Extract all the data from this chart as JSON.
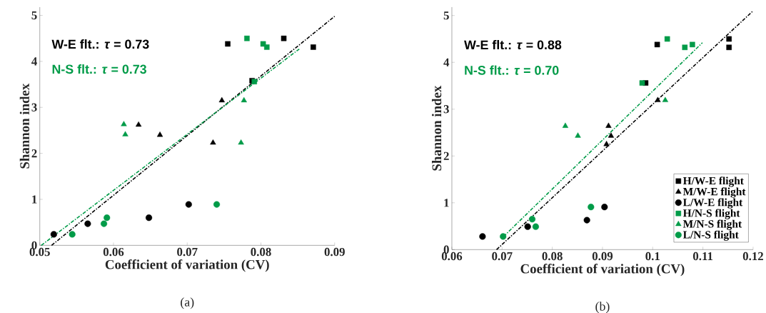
{
  "chart_data": [
    {
      "type": "scatter",
      "title": "(a)",
      "xlabel": "Coefficient of variation (CV)",
      "ylabel": "Shannon index",
      "xlim": [
        0.05,
        0.09
      ],
      "xticks": [
        0.05,
        0.06,
        0.07,
        0.08,
        0.09
      ],
      "ylim": [
        0,
        5.18
      ],
      "yticks": [
        0,
        1,
        2,
        3,
        4,
        5
      ],
      "annotations": [
        "W-E flt.: *τ* = 0.73",
        "N-S flt.: *τ* = 0.73"
      ],
      "series": [
        {
          "marker": "square",
          "color": "#000000",
          "x": [
            0.0755,
            0.0831,
            0.0871,
            0.0788
          ],
          "values": [
            4.38,
            4.5,
            4.31,
            3.58
          ]
        },
        {
          "marker": "triangle",
          "color": "#000000",
          "x": [
            0.0747,
            0.0634,
            0.0663,
            0.0735
          ],
          "values": [
            3.15,
            2.62,
            2.4,
            2.23
          ]
        },
        {
          "marker": "circle",
          "color": "#000000",
          "x": [
            0.0519,
            0.0565,
            0.0648,
            0.0702
          ],
          "values": [
            0.24,
            0.47,
            0.6,
            0.89
          ]
        },
        {
          "marker": "square",
          "color": "#009b48",
          "x": [
            0.0781,
            0.0803,
            0.0808,
            0.0791
          ],
          "values": [
            4.5,
            4.38,
            4.31,
            3.56
          ]
        },
        {
          "marker": "triangle",
          "color": "#009b48",
          "x": [
            0.0614,
            0.0616,
            0.0777,
            0.0773
          ],
          "values": [
            2.63,
            2.41,
            3.15,
            2.23
          ]
        },
        {
          "marker": "circle",
          "color": "#009b48",
          "x": [
            0.0544,
            0.0587,
            0.0591,
            0.074
          ],
          "values": [
            0.24,
            0.47,
            0.6,
            0.89
          ]
        },
        {
          "type": "line",
          "line_style": "dashdot",
          "color": "#000000",
          "x": [
            0.0516,
            0.09
          ],
          "values": [
            0,
            4.98
          ]
        },
        {
          "type": "line",
          "line_style": "dashdot",
          "color": "#009b48",
          "x": [
            0.0502,
            0.0852
          ],
          "values": [
            0,
            4.27
          ]
        }
      ]
    },
    {
      "type": "scatter",
      "title": "(b)",
      "xlabel": "Coefficient of variation (CV)",
      "ylabel": "Shannon index",
      "legend": "bottom right",
      "xlim": [
        0.06,
        0.12
      ],
      "xticks": [
        0.06,
        0.07,
        0.08,
        0.09,
        0.1,
        0.11,
        0.12
      ],
      "ylim": [
        0,
        5.18
      ],
      "yticks": [
        0,
        1,
        2,
        3,
        4,
        5
      ],
      "annotations": [
        "W-E flt.: *τ* = 0.88",
        "N-S flt.: *τ* = 0.70"
      ],
      "series": [
        {
          "name": "H/W-E flight",
          "marker": "square",
          "color": "#000000",
          "x": [
            0.1009,
            0.1152,
            0.1152,
            0.0986
          ],
          "values": [
            4.38,
            4.5,
            4.32,
            3.56
          ]
        },
        {
          "name": "M/W-E flight",
          "marker": "triangle",
          "color": "#000000",
          "x": [
            0.0912,
            0.0917,
            0.0908,
            0.101
          ],
          "values": [
            2.64,
            2.43,
            2.25,
            3.19
          ]
        },
        {
          "name": "L/W-E flight",
          "marker": "circle",
          "color": "#000000",
          "x": [
            0.0661,
            0.0751,
            0.0869,
            0.0904
          ],
          "values": [
            0.28,
            0.49,
            0.63,
            0.91
          ]
        },
        {
          "name": "H/N-S flight",
          "marker": "square",
          "color": "#009b48",
          "x": [
            0.1029,
            0.1064,
            0.1079,
            0.0979
          ],
          "values": [
            4.5,
            4.32,
            4.38,
            3.56
          ]
        },
        {
          "name": "M/N-S flight",
          "marker": "triangle",
          "color": "#009b48",
          "x": [
            0.0826,
            0.0851,
            0.1025
          ],
          "values": [
            2.64,
            2.43,
            3.19
          ]
        },
        {
          "name": "L/N-S flight",
          "marker": "circle",
          "color": "#009b48",
          "x": [
            0.0702,
            0.076,
            0.0767,
            0.0877
          ],
          "values": [
            0.28,
            0.65,
            0.49,
            0.91
          ]
        },
        {
          "type": "line",
          "line_style": "dashdot",
          "color": "#000000",
          "x": [
            0.0689,
            0.1199
          ],
          "values": [
            0,
            5.09
          ]
        },
        {
          "type": "line",
          "line_style": "dashdot",
          "color": "#009b48",
          "x": [
            0.0703,
            0.1099
          ],
          "values": [
            0.28,
            4.42
          ]
        }
      ]
    }
  ]
}
